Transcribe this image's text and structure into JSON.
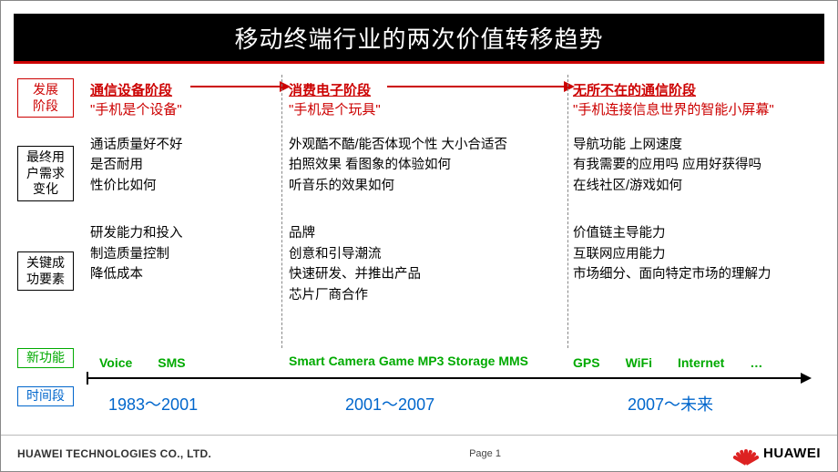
{
  "title": "移动终端行业的两次价值转移趋势",
  "labels": {
    "stage": "发展\n阶段",
    "needs": "最终用\n户需求\n变化",
    "ksf": "关键成\n功要素",
    "feature": "新功能",
    "time": "时间段"
  },
  "stages": {
    "s1": {
      "title": "通信设备阶段",
      "sub": "\"手机是个设备\""
    },
    "s2": {
      "title": "消费电子阶段",
      "sub": "\"手机是个玩具\""
    },
    "s3": {
      "title": "无所不在的通信阶段",
      "sub": "\"手机连接信息世界的智能小屏幕\""
    }
  },
  "needs": {
    "c1": "通话质量好不好\n是否耐用\n性价比如何",
    "c2": "外观酷不酷/能否体现个性  大小合适否\n拍照效果  看图象的体验如何\n听音乐的效果如何",
    "c3": "导航功能  上网速度\n有我需要的应用吗  应用好获得吗\n在线社区/游戏如何"
  },
  "ksf": {
    "c1": "研发能力和投入\n制造质量控制\n降低成本",
    "c2": "品牌\n创意和引导潮流\n快速研发、并推出产品\n芯片厂商合作",
    "c3": "价值链主导能力\n互联网应用能力\n市场细分、面向特定市场的理解力"
  },
  "features": {
    "c1": "Voice　　SMS",
    "c2": "Smart  Camera  Game MP3  Storage  MMS",
    "c3": "GPS　　WiFi　　Internet　　…"
  },
  "times": {
    "c1": "1983～2001",
    "c2": "2001～2007",
    "c3": "2007～未来"
  },
  "footer": {
    "company": "HUAWEI TECHNOLOGIES CO., LTD.",
    "page": "Page 1",
    "logo": "HUAWEI"
  },
  "colors": {
    "red": "#c00",
    "green": "#0a0",
    "blue": "#06c",
    "black": "#000"
  }
}
